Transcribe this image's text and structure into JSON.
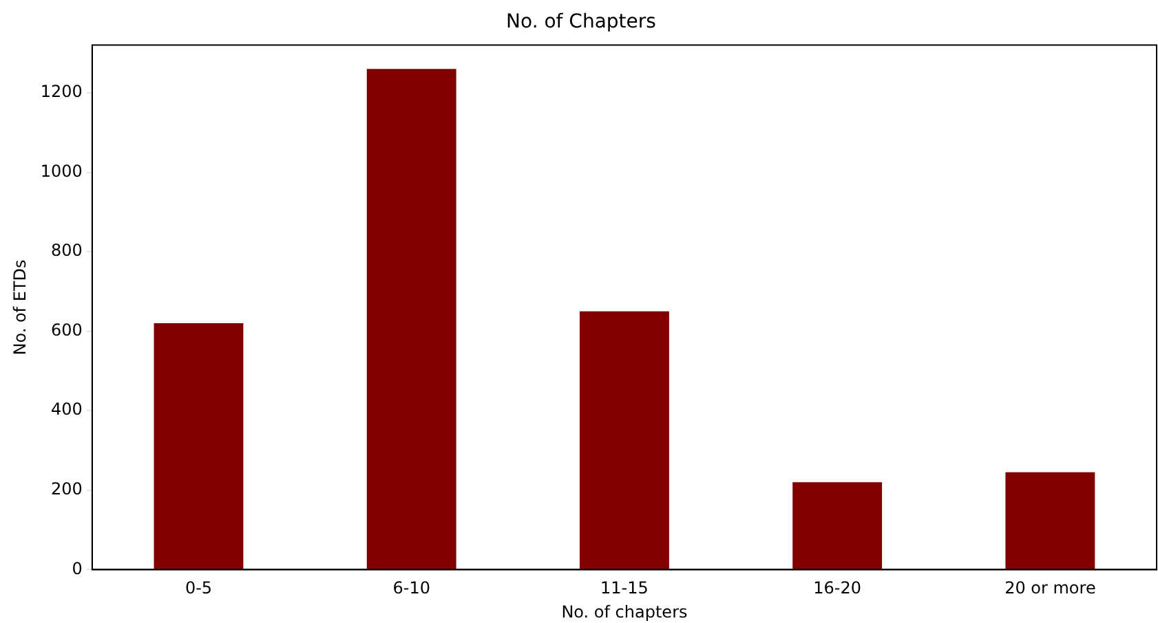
{
  "chart_data": {
    "type": "bar",
    "title": "No. of Chapters",
    "xlabel": "No. of chapters",
    "ylabel": "No. of ETDs",
    "categories": [
      "0-5",
      "6-10",
      "11-15",
      "16-20",
      "20 or more"
    ],
    "values": [
      620,
      1260,
      650,
      220,
      245
    ],
    "color": "#800000",
    "ylim": [
      0,
      1320
    ],
    "yticks": [
      0,
      200,
      400,
      600,
      800,
      1000,
      1200
    ],
    "grid": false,
    "legend": false
  }
}
